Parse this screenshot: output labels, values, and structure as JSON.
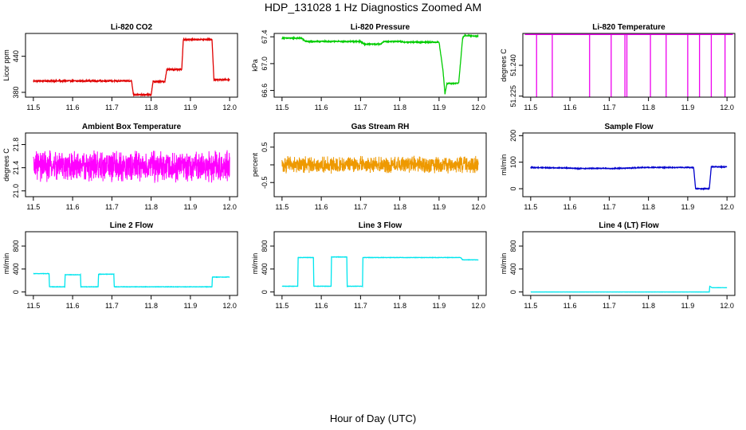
{
  "figure": {
    "title": "HDP_131028  1 Hz Diagnostics Zoomed AM",
    "xlabel": "Hour of Day (UTC)"
  },
  "chart_data": [
    {
      "type": "line",
      "title": "Li-820 CO2",
      "ylabel": "Licor ppm",
      "color": "#e00000",
      "xlim": [
        11.48,
        12.02
      ],
      "ylim": [
        372,
        478
      ],
      "xticks": [
        11.5,
        11.6,
        11.7,
        11.8,
        11.9,
        12.0
      ],
      "yticks": [
        380,
        440
      ],
      "yticklabels": [
        "380",
        "440"
      ],
      "noise": 1.0,
      "x": [
        11.5,
        11.75,
        11.755,
        11.8,
        11.805,
        11.835,
        11.84,
        11.878,
        11.882,
        11.955,
        11.96,
        12.0
      ],
      "y": [
        399,
        399,
        376,
        376,
        398,
        398,
        418,
        418,
        468,
        468,
        401,
        401
      ]
    },
    {
      "type": "line",
      "title": "Li-820 Pressure",
      "ylabel": "kPa",
      "color": "#00cc00",
      "xlim": [
        11.48,
        12.02
      ],
      "ylim": [
        66.5,
        67.45
      ],
      "xticks": [
        11.5,
        11.6,
        11.7,
        11.8,
        11.9,
        12.0
      ],
      "yticks": [
        66.6,
        67.0,
        67.4
      ],
      "yticklabels": [
        "66.6",
        "67.0",
        "67.4"
      ],
      "noise": 0.008,
      "x": [
        11.5,
        11.55,
        11.56,
        11.7,
        11.71,
        11.75,
        11.76,
        11.8,
        11.81,
        11.9,
        11.91,
        11.915,
        11.92,
        11.95,
        11.96,
        11.965,
        12.0
      ],
      "y": [
        67.38,
        67.38,
        67.33,
        67.33,
        67.29,
        67.29,
        67.33,
        67.33,
        67.32,
        67.32,
        66.9,
        66.55,
        66.7,
        66.71,
        67.38,
        67.42,
        67.41
      ]
    },
    {
      "type": "line",
      "title": "Li-820 Temperature",
      "ylabel": "degrees C",
      "color": "#ee00ee",
      "xlim": [
        11.48,
        12.02
      ],
      "ylim": [
        51.2245,
        51.2555
      ],
      "xticks": [
        11.5,
        11.6,
        11.7,
        11.8,
        11.9,
        12.0
      ],
      "yticks": [
        51.225,
        51.24
      ],
      "yticklabels": [
        "51.225",
        "51.240"
      ],
      "baseline": 51.255,
      "spikes": [
        11.515,
        11.555,
        11.65,
        11.705,
        11.74,
        11.745,
        11.805,
        11.845,
        11.9,
        11.93,
        11.96,
        11.995
      ]
    },
    {
      "type": "line",
      "title": "Ambient Box Temperature",
      "ylabel": "degrees C",
      "color": "#ff00ff",
      "xlim": [
        11.48,
        12.02
      ],
      "ylim": [
        20.9,
        22.0
      ],
      "xticks": [
        11.5,
        11.6,
        11.7,
        11.8,
        11.9,
        12.0
      ],
      "yticks": [
        21.0,
        21.4,
        21.8
      ],
      "yticklabels": [
        "21.0",
        "21.4",
        "21.8"
      ],
      "center": 21.42,
      "amplitude": 0.25
    },
    {
      "type": "line",
      "title": "Gas Stream RH",
      "ylabel": "percent",
      "color": "#ee9900",
      "xlim": [
        11.48,
        12.02
      ],
      "ylim": [
        -0.9,
        0.9
      ],
      "xticks": [
        11.5,
        11.6,
        11.7,
        11.8,
        11.9,
        12.0
      ],
      "yticks": [
        -0.5,
        0.0,
        0.5
      ],
      "yticklabels": [
        "-0.5",
        "",
        "0.5"
      ],
      "center": 0.0,
      "amplitude": 0.22
    },
    {
      "type": "line",
      "title": "Sample Flow",
      "ylabel": "ml/min",
      "color": "#0000cc",
      "xlim": [
        11.48,
        12.02
      ],
      "ylim": [
        -30,
        210
      ],
      "xticks": [
        11.5,
        11.6,
        11.7,
        11.8,
        11.9,
        12.0
      ],
      "yticks": [
        0,
        100,
        200
      ],
      "yticklabels": [
        "0",
        "100",
        "200"
      ],
      "noise": 1.5,
      "x": [
        11.5,
        11.6,
        11.62,
        11.68,
        11.7,
        11.76,
        11.78,
        11.915,
        11.92,
        11.955,
        11.96,
        12.0
      ],
      "y": [
        80,
        78,
        76,
        77,
        76,
        78,
        80,
        80,
        0,
        0,
        83,
        82
      ]
    },
    {
      "type": "line",
      "title": "Line 2 Flow",
      "ylabel": "ml/min",
      "color": "#00e5ee",
      "xlim": [
        11.48,
        12.02
      ],
      "ylim": [
        -60,
        1050
      ],
      "xticks": [
        11.5,
        11.6,
        11.7,
        11.8,
        11.9,
        12.0
      ],
      "yticks": [
        0,
        400,
        800
      ],
      "yticklabels": [
        "0",
        "400",
        "800"
      ],
      "noise": 3,
      "x": [
        11.5,
        11.54,
        11.541,
        11.58,
        11.581,
        11.62,
        11.621,
        11.665,
        11.666,
        11.705,
        11.706,
        11.955,
        11.956,
        12.0
      ],
      "y": [
        320,
        320,
        90,
        90,
        300,
        300,
        90,
        90,
        310,
        310,
        90,
        90,
        260,
        260
      ]
    },
    {
      "type": "line",
      "title": "Line 3 Flow",
      "ylabel": "ml/min",
      "color": "#00e5ee",
      "xlim": [
        11.48,
        12.02
      ],
      "ylim": [
        -60,
        1050
      ],
      "xticks": [
        11.5,
        11.6,
        11.7,
        11.8,
        11.9,
        12.0
      ],
      "yticks": [
        0,
        400,
        800
      ],
      "yticklabels": [
        "0",
        "400",
        "800"
      ],
      "noise": 3,
      "x": [
        11.5,
        11.54,
        11.541,
        11.58,
        11.581,
        11.625,
        11.626,
        11.665,
        11.666,
        11.705,
        11.706,
        11.955,
        11.96,
        12.0
      ],
      "y": [
        100,
        100,
        600,
        600,
        100,
        100,
        610,
        610,
        100,
        100,
        600,
        600,
        560,
        560
      ]
    },
    {
      "type": "line",
      "title": "Line 4 (LT) Flow",
      "ylabel": "ml/min",
      "color": "#00e5ee",
      "xlim": [
        11.48,
        12.02
      ],
      "ylim": [
        -60,
        1050
      ],
      "xticks": [
        11.5,
        11.6,
        11.7,
        11.8,
        11.9,
        12.0
      ],
      "yticks": [
        0,
        400,
        800
      ],
      "yticklabels": [
        "0",
        "400",
        "800"
      ],
      "noise": 1,
      "x": [
        11.5,
        11.955,
        11.956,
        11.962,
        12.0
      ],
      "y": [
        0,
        0,
        100,
        75,
        75
      ]
    }
  ]
}
